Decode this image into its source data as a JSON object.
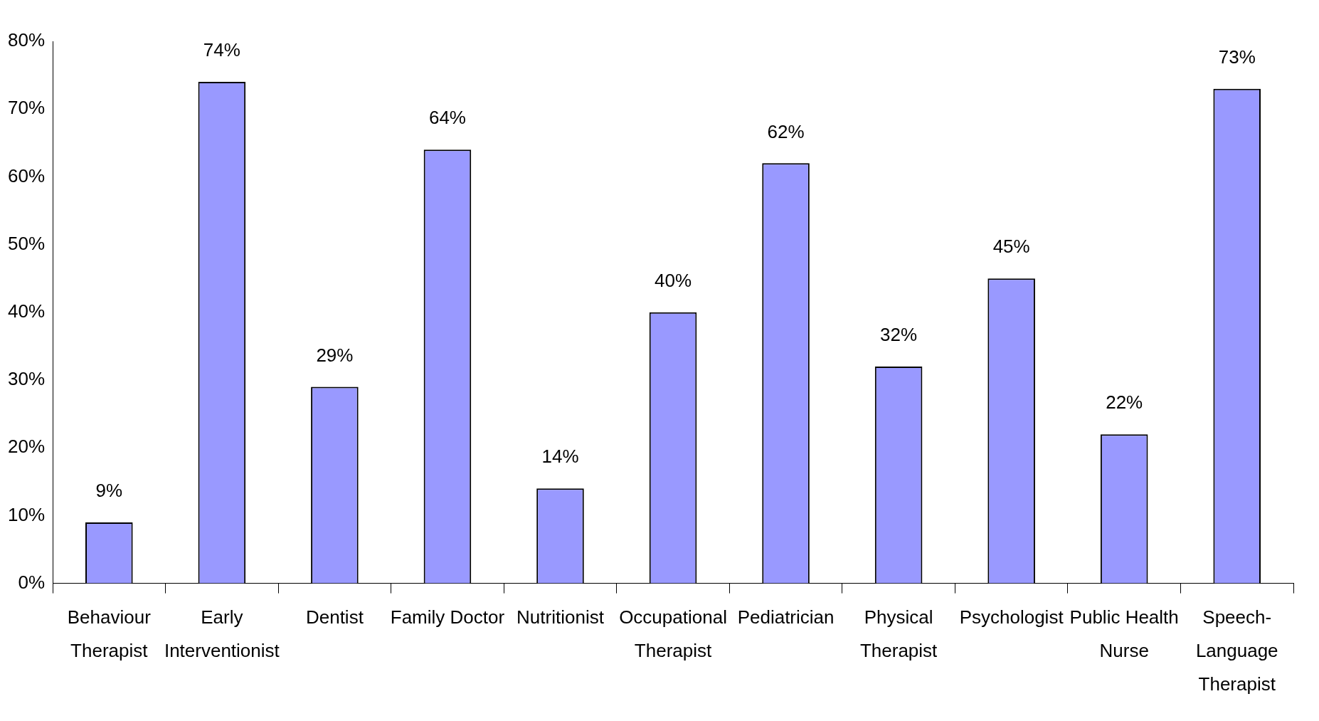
{
  "chart_data": {
    "type": "bar",
    "categories": [
      "Behaviour Therapist",
      "Early Interventionist",
      "Dentist",
      "Family Doctor",
      "Nutritionist",
      "Occupational Therapist",
      "Pediatrician",
      "Physical Therapist",
      "Psychologist",
      "Public Health Nurse",
      "Speech-Language Therapist"
    ],
    "values": [
      9,
      74,
      29,
      64,
      14,
      40,
      62,
      32,
      45,
      22,
      73
    ],
    "value_labels": [
      "9%",
      "74%",
      "29%",
      "64%",
      "14%",
      "40%",
      "62%",
      "32%",
      "45%",
      "22%",
      "73%"
    ],
    "color": "#9999ff",
    "ylim": [
      0,
      80
    ],
    "yticks": [
      {
        "value": 0,
        "label": "0%"
      },
      {
        "value": 10,
        "label": "10%"
      },
      {
        "value": 20,
        "label": "20%"
      },
      {
        "value": 30,
        "label": "30%"
      },
      {
        "value": 40,
        "label": "40%"
      },
      {
        "value": 50,
        "label": "50%"
      },
      {
        "value": 60,
        "label": "60%"
      },
      {
        "value": 70,
        "label": "70%"
      },
      {
        "value": 80,
        "label": "80%"
      }
    ],
    "grid": false,
    "legend": false
  }
}
